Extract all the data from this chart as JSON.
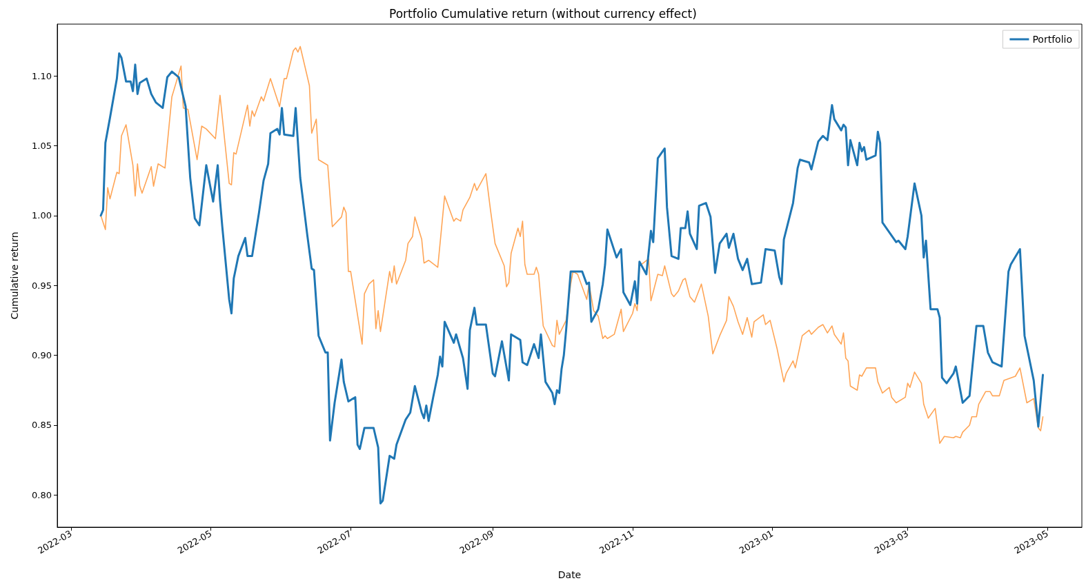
{
  "chart_data": {
    "type": "line",
    "title": "Portfolio Cumulative return (without currency effect)",
    "xlabel": "Date",
    "ylabel": "Cumulative return",
    "xlim": [
      "2022-02-23",
      "2023-05-16"
    ],
    "xticks": [
      {
        "value": "2022-03-01",
        "label": "2022-03"
      },
      {
        "value": "2022-05-01",
        "label": "2022-05"
      },
      {
        "value": "2022-07-01",
        "label": "2022-07"
      },
      {
        "value": "2022-09-01",
        "label": "2022-09"
      },
      {
        "value": "2022-11-01",
        "label": "2022-11"
      },
      {
        "value": "2023-01-01",
        "label": "2023-01"
      },
      {
        "value": "2023-03-01",
        "label": "2023-03"
      },
      {
        "value": "2023-05-01",
        "label": "2023-05"
      }
    ],
    "ylim": [
      0.777,
      1.137
    ],
    "yticks": [
      {
        "value": 0.8,
        "label": "0.80"
      },
      {
        "value": 0.85,
        "label": "0.85"
      },
      {
        "value": 0.9,
        "label": "0.90"
      },
      {
        "value": 0.95,
        "label": "0.95"
      },
      {
        "value": 1.0,
        "label": "1.00"
      },
      {
        "value": 1.05,
        "label": "1.05"
      },
      {
        "value": 1.1,
        "label": "1.10"
      }
    ],
    "grid": false,
    "legend": "top right",
    "marker": "none",
    "line_style": "solid",
    "series": [
      {
        "name": "Portfolio",
        "color": "#1f77b4",
        "x": [
          "2022-03-14",
          "2022-03-15",
          "2022-03-16",
          "2022-03-18",
          "2022-03-21",
          "2022-03-22",
          "2022-03-23",
          "2022-03-25",
          "2022-03-27",
          "2022-03-28",
          "2022-03-29",
          "2022-03-30",
          "2022-03-31",
          "2022-04-03",
          "2022-04-05",
          "2022-04-07",
          "2022-04-10",
          "2022-04-12",
          "2022-04-14",
          "2022-04-17",
          "2022-04-20",
          "2022-04-22",
          "2022-04-24",
          "2022-04-26",
          "2022-04-29",
          "2022-05-02",
          "2022-05-04",
          "2022-05-05",
          "2022-05-06",
          "2022-05-09",
          "2022-05-10",
          "2022-05-11",
          "2022-05-13",
          "2022-05-16",
          "2022-05-17",
          "2022-05-19",
          "2022-05-22",
          "2022-05-24",
          "2022-05-26",
          "2022-05-27",
          "2022-05-30",
          "2022-05-31",
          "2022-06-01",
          "2022-06-02",
          "2022-06-06",
          "2022-06-07",
          "2022-06-09",
          "2022-06-12",
          "2022-06-14",
          "2022-06-15",
          "2022-06-17",
          "2022-06-20",
          "2022-06-21",
          "2022-06-22",
          "2022-06-24",
          "2022-06-27",
          "2022-06-28",
          "2022-06-30",
          "2022-07-03",
          "2022-07-04",
          "2022-07-05",
          "2022-07-07",
          "2022-07-11",
          "2022-07-13",
          "2022-07-14",
          "2022-07-15",
          "2022-07-18",
          "2022-07-20",
          "2022-07-21",
          "2022-07-25",
          "2022-07-27",
          "2022-07-29",
          "2022-08-01",
          "2022-08-02",
          "2022-08-03",
          "2022-08-04",
          "2022-08-06",
          "2022-08-08",
          "2022-08-09",
          "2022-08-10",
          "2022-08-11",
          "2022-08-15",
          "2022-08-16",
          "2022-08-19",
          "2022-08-21",
          "2022-08-22",
          "2022-08-24",
          "2022-08-25",
          "2022-08-29",
          "2022-09-01",
          "2022-09-02",
          "2022-09-05",
          "2022-09-08",
          "2022-09-09",
          "2022-09-13",
          "2022-09-14",
          "2022-09-16",
          "2022-09-19",
          "2022-09-21",
          "2022-09-22",
          "2022-09-24",
          "2022-09-27",
          "2022-09-28",
          "2022-09-29",
          "2022-09-30",
          "2022-10-01",
          "2022-10-02",
          "2022-10-03",
          "2022-10-05",
          "2022-10-10",
          "2022-10-12",
          "2022-10-13",
          "2022-10-14",
          "2022-10-17",
          "2022-10-19",
          "2022-10-20",
          "2022-10-21",
          "2022-10-25",
          "2022-10-27",
          "2022-10-28",
          "2022-10-31",
          "2022-11-02",
          "2022-11-03",
          "2022-11-04",
          "2022-11-07",
          "2022-11-09",
          "2022-11-10",
          "2022-11-12",
          "2022-11-15",
          "2022-11-16",
          "2022-11-18",
          "2022-11-21",
          "2022-11-22",
          "2022-11-24",
          "2022-11-25",
          "2022-11-26",
          "2022-11-29",
          "2022-11-30",
          "2022-12-03",
          "2022-12-05",
          "2022-12-07",
          "2022-12-09",
          "2022-12-12",
          "2022-12-13",
          "2022-12-15",
          "2022-12-17",
          "2022-12-19",
          "2022-12-21",
          "2022-12-23",
          "2022-12-27",
          "2022-12-29",
          "2023-01-02",
          "2023-01-04",
          "2023-01-05",
          "2023-01-06",
          "2023-01-10",
          "2023-01-12",
          "2023-01-13",
          "2023-01-17",
          "2023-01-18",
          "2023-01-21",
          "2023-01-23",
          "2023-01-25",
          "2023-01-27",
          "2023-01-28",
          "2023-01-31",
          "2023-02-01",
          "2023-02-02",
          "2023-02-03",
          "2023-02-04",
          "2023-02-07",
          "2023-02-08",
          "2023-02-09",
          "2023-02-10",
          "2023-02-11",
          "2023-02-15",
          "2023-02-16",
          "2023-02-17",
          "2023-02-18",
          "2023-02-24",
          "2023-02-25",
          "2023-02-28",
          "2023-03-01",
          "2023-03-04",
          "2023-03-07",
          "2023-03-08",
          "2023-03-09",
          "2023-03-11",
          "2023-03-14",
          "2023-03-15",
          "2023-03-16",
          "2023-03-18",
          "2023-03-21",
          "2023-03-22",
          "2023-03-25",
          "2023-03-28",
          "2023-03-31",
          "2023-04-03",
          "2023-04-05",
          "2023-04-07",
          "2023-04-11",
          "2023-04-14",
          "2023-04-15",
          "2023-04-19",
          "2023-04-21",
          "2023-04-25",
          "2023-04-27",
          "2023-04-29"
        ],
        "values": [
          1.0,
          1.004,
          1.052,
          1.07,
          1.098,
          1.116,
          1.113,
          1.096,
          1.096,
          1.089,
          1.108,
          1.087,
          1.095,
          1.098,
          1.087,
          1.081,
          1.077,
          1.099,
          1.103,
          1.099,
          1.078,
          1.027,
          0.998,
          0.993,
          1.036,
          1.01,
          1.036,
          1.011,
          0.992,
          0.94,
          0.93,
          0.955,
          0.971,
          0.984,
          0.971,
          0.971,
          1.002,
          1.025,
          1.037,
          1.059,
          1.062,
          1.058,
          1.077,
          1.058,
          1.057,
          1.077,
          1.027,
          0.987,
          0.962,
          0.961,
          0.914,
          0.902,
          0.902,
          0.839,
          0.866,
          0.897,
          0.881,
          0.867,
          0.87,
          0.836,
          0.833,
          0.848,
          0.848,
          0.834,
          0.794,
          0.796,
          0.828,
          0.826,
          0.836,
          0.854,
          0.859,
          0.878,
          0.859,
          0.855,
          0.864,
          0.853,
          0.87,
          0.886,
          0.899,
          0.892,
          0.924,
          0.909,
          0.915,
          0.898,
          0.876,
          0.918,
          0.934,
          0.922,
          0.922,
          0.887,
          0.885,
          0.91,
          0.882,
          0.915,
          0.911,
          0.895,
          0.893,
          0.908,
          0.898,
          0.915,
          0.881,
          0.873,
          0.865,
          0.875,
          0.873,
          0.89,
          0.9,
          0.918,
          0.96,
          0.96,
          0.951,
          0.952,
          0.924,
          0.933,
          0.951,
          0.965,
          0.99,
          0.97,
          0.976,
          0.945,
          0.936,
          0.953,
          0.937,
          0.967,
          0.958,
          0.989,
          0.981,
          1.041,
          1.048,
          1.006,
          0.971,
          0.969,
          0.991,
          0.991,
          1.003,
          0.987,
          0.976,
          1.007,
          1.009,
          0.999,
          0.959,
          0.98,
          0.987,
          0.977,
          0.987,
          0.969,
          0.961,
          0.969,
          0.951,
          0.952,
          0.976,
          0.975,
          0.956,
          0.951,
          0.983,
          1.009,
          1.034,
          1.04,
          1.038,
          1.033,
          1.053,
          1.057,
          1.054,
          1.079,
          1.069,
          1.061,
          1.065,
          1.063,
          1.036,
          1.054,
          1.036,
          1.052,
          1.046,
          1.049,
          1.04,
          1.043,
          1.06,
          1.052,
          0.995,
          0.981,
          0.982,
          0.976,
          0.985,
          1.023,
          1.0,
          0.97,
          0.982,
          0.933,
          0.933,
          0.927,
          0.884,
          0.88,
          0.887,
          0.892,
          0.866,
          0.871,
          0.921,
          0.921,
          0.902,
          0.895,
          0.892,
          0.96,
          0.965,
          0.976,
          0.914,
          0.882,
          0.849,
          0.886
        ]
      },
      {
        "color": "#ffa556",
        "x": [
          "2022-03-14",
          "2022-03-16",
          "2022-03-17",
          "2022-03-18",
          "2022-03-21",
          "2022-03-22",
          "2022-03-23",
          "2022-03-25",
          "2022-03-28",
          "2022-03-29",
          "2022-03-30",
          "2022-03-31",
          "2022-04-01",
          "2022-04-05",
          "2022-04-06",
          "2022-04-08",
          "2022-04-11",
          "2022-04-14",
          "2022-04-18",
          "2022-04-19",
          "2022-04-21",
          "2022-04-23",
          "2022-04-25",
          "2022-04-27",
          "2022-04-29",
          "2022-05-03",
          "2022-05-05",
          "2022-05-09",
          "2022-05-10",
          "2022-05-11",
          "2022-05-12",
          "2022-05-17",
          "2022-05-18",
          "2022-05-19",
          "2022-05-20",
          "2022-05-23",
          "2022-05-24",
          "2022-05-27",
          "2022-05-31",
          "2022-06-02",
          "2022-06-03",
          "2022-06-06",
          "2022-06-07",
          "2022-06-08",
          "2022-06-09",
          "2022-06-13",
          "2022-06-14",
          "2022-06-16",
          "2022-06-17",
          "2022-06-21",
          "2022-06-23",
          "2022-06-27",
          "2022-06-28",
          "2022-06-29",
          "2022-06-30",
          "2022-07-01",
          "2022-07-06",
          "2022-07-07",
          "2022-07-09",
          "2022-07-11",
          "2022-07-12",
          "2022-07-13",
          "2022-07-14",
          "2022-07-18",
          "2022-07-19",
          "2022-07-20",
          "2022-07-21",
          "2022-07-25",
          "2022-07-26",
          "2022-07-28",
          "2022-07-29",
          "2022-08-01",
          "2022-08-02",
          "2022-08-04",
          "2022-08-08",
          "2022-08-11",
          "2022-08-15",
          "2022-08-16",
          "2022-08-18",
          "2022-08-19",
          "2022-08-22",
          "2022-08-24",
          "2022-08-25",
          "2022-08-29",
          "2022-08-31",
          "2022-09-02",
          "2022-09-06",
          "2022-09-07",
          "2022-09-08",
          "2022-09-09",
          "2022-09-12",
          "2022-09-13",
          "2022-09-14",
          "2022-09-15",
          "2022-09-16",
          "2022-09-19",
          "2022-09-20",
          "2022-09-21",
          "2022-09-23",
          "2022-09-27",
          "2022-09-28",
          "2022-09-29",
          "2022-09-30",
          "2022-10-03",
          "2022-10-05",
          "2022-10-06",
          "2022-10-08",
          "2022-10-10",
          "2022-10-12",
          "2022-10-13",
          "2022-10-15",
          "2022-10-17",
          "2022-10-19",
          "2022-10-20",
          "2022-10-21",
          "2022-10-24",
          "2022-10-27",
          "2022-10-28",
          "2022-11-01",
          "2022-11-02",
          "2022-11-03",
          "2022-11-04",
          "2022-11-08",
          "2022-11-09",
          "2022-11-12",
          "2022-11-14",
          "2022-11-15",
          "2022-11-18",
          "2022-11-19",
          "2022-11-21",
          "2022-11-23",
          "2022-11-24",
          "2022-11-26",
          "2022-11-28",
          "2022-12-01",
          "2022-12-04",
          "2022-12-06",
          "2022-12-09",
          "2022-12-12",
          "2022-12-13",
          "2022-12-15",
          "2022-12-17",
          "2022-12-19",
          "2022-12-21",
          "2022-12-23",
          "2022-12-24",
          "2022-12-28",
          "2022-12-29",
          "2022-12-31",
          "2023-01-03",
          "2023-01-06",
          "2023-01-07",
          "2023-01-10",
          "2023-01-11",
          "2023-01-14",
          "2023-01-17",
          "2023-01-18",
          "2023-01-21",
          "2023-01-23",
          "2023-01-25",
          "2023-01-27",
          "2023-01-28",
          "2023-01-31",
          "2023-02-01",
          "2023-02-02",
          "2023-02-03",
          "2023-02-04",
          "2023-02-07",
          "2023-02-08",
          "2023-02-09",
          "2023-02-11",
          "2023-02-15",
          "2023-02-16",
          "2023-02-18",
          "2023-02-21",
          "2023-02-22",
          "2023-02-24",
          "2023-02-28",
          "2023-03-01",
          "2023-03-02",
          "2023-03-04",
          "2023-03-07",
          "2023-03-08",
          "2023-03-10",
          "2023-03-13",
          "2023-03-15",
          "2023-03-17",
          "2023-03-21",
          "2023-03-22",
          "2023-03-24",
          "2023-03-25",
          "2023-03-28",
          "2023-03-29",
          "2023-03-31",
          "2023-04-01",
          "2023-04-04",
          "2023-04-06",
          "2023-04-07",
          "2023-04-10",
          "2023-04-12",
          "2023-04-17",
          "2023-04-19",
          "2023-04-22",
          "2023-04-25",
          "2023-04-27",
          "2023-04-28",
          "2023-04-29"
        ],
        "values": [
          1.0,
          0.99,
          1.02,
          1.012,
          1.031,
          1.03,
          1.057,
          1.065,
          1.036,
          1.014,
          1.037,
          1.021,
          1.016,
          1.035,
          1.021,
          1.037,
          1.034,
          1.085,
          1.107,
          1.077,
          1.076,
          1.058,
          1.04,
          1.064,
          1.062,
          1.055,
          1.086,
          1.023,
          1.022,
          1.045,
          1.044,
          1.079,
          1.064,
          1.075,
          1.071,
          1.085,
          1.082,
          1.098,
          1.078,
          1.098,
          1.098,
          1.118,
          1.12,
          1.117,
          1.121,
          1.093,
          1.059,
          1.069,
          1.04,
          1.036,
          0.992,
          0.999,
          1.006,
          1.002,
          0.96,
          0.96,
          0.908,
          0.944,
          0.951,
          0.954,
          0.919,
          0.932,
          0.917,
          0.96,
          0.952,
          0.964,
          0.951,
          0.968,
          0.98,
          0.985,
          0.999,
          0.983,
          0.966,
          0.968,
          0.963,
          1.014,
          0.996,
          0.998,
          0.996,
          1.004,
          1.013,
          1.023,
          1.018,
          1.03,
          1.004,
          0.98,
          0.964,
          0.949,
          0.952,
          0.973,
          0.991,
          0.985,
          0.996,
          0.965,
          0.958,
          0.958,
          0.963,
          0.958,
          0.921,
          0.907,
          0.906,
          0.925,
          0.915,
          0.925,
          0.951,
          0.96,
          0.958,
          0.949,
          0.94,
          0.951,
          0.932,
          0.928,
          0.912,
          0.914,
          0.912,
          0.915,
          0.933,
          0.917,
          0.93,
          0.937,
          0.932,
          0.964,
          0.969,
          0.939,
          0.958,
          0.957,
          0.964,
          0.944,
          0.942,
          0.946,
          0.954,
          0.955,
          0.942,
          0.938,
          0.951,
          0.928,
          0.901,
          0.914,
          0.925,
          0.942,
          0.935,
          0.924,
          0.915,
          0.927,
          0.913,
          0.924,
          0.929,
          0.922,
          0.925,
          0.905,
          0.881,
          0.887,
          0.896,
          0.891,
          0.914,
          0.918,
          0.915,
          0.92,
          0.922,
          0.916,
          0.921,
          0.915,
          0.908,
          0.916,
          0.898,
          0.896,
          0.878,
          0.875,
          0.886,
          0.885,
          0.891,
          0.891,
          0.881,
          0.873,
          0.877,
          0.87,
          0.866,
          0.87,
          0.88,
          0.877,
          0.888,
          0.88,
          0.865,
          0.855,
          0.862,
          0.837,
          0.842,
          0.841,
          0.842,
          0.841,
          0.845,
          0.85,
          0.856,
          0.856,
          0.865,
          0.874,
          0.874,
          0.871,
          0.871,
          0.882,
          0.885,
          0.891,
          0.866,
          0.869,
          0.848,
          0.846,
          0.856
        ]
      }
    ]
  }
}
